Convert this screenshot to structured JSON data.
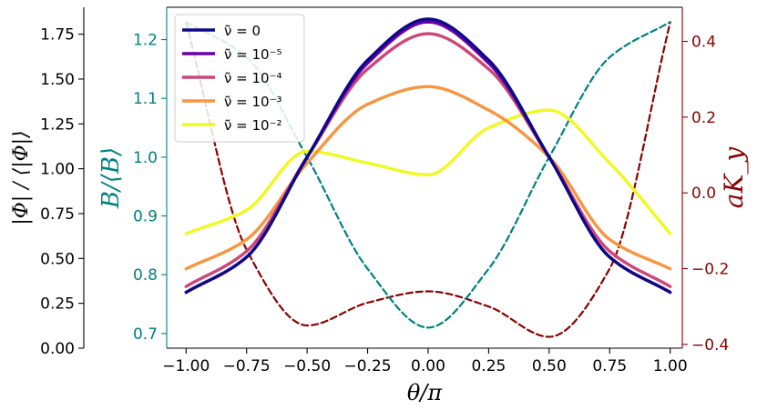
{
  "chart_data": {
    "type": "line",
    "x_domain": [
      -1.0,
      1.0
    ],
    "xlim": [
      -1.08,
      1.05
    ],
    "xlabel": "θ/π",
    "xticks": [
      "−1.00",
      "−0.75",
      "−0.50",
      "−0.25",
      "0.00",
      "0.25",
      "0.50",
      "0.75",
      "1.00"
    ],
    "xtick_values": [
      -1.0,
      -0.75,
      -0.5,
      -0.25,
      0.0,
      0.25,
      0.5,
      0.75,
      1.0
    ],
    "outer_axis": {
      "label": "|Φ| / ⟨|Φ|⟩",
      "ylim": [
        0.0,
        1.9
      ],
      "ticks": [
        "0.00",
        "0.25",
        "0.50",
        "0.75",
        "1.00",
        "1.25",
        "1.50",
        "1.75"
      ],
      "tick_values": [
        0.0,
        0.25,
        0.5,
        0.75,
        1.0,
        1.25,
        1.5,
        1.75
      ]
    },
    "left_axis": {
      "label": "B/⟨B⟩",
      "color": "#008080",
      "ylim": [
        0.675,
        1.255
      ],
      "ticks": [
        "0.7",
        "0.8",
        "0.9",
        "1.0",
        "1.1",
        "1.2"
      ],
      "tick_values": [
        0.7,
        0.8,
        0.9,
        1.0,
        1.1,
        1.2
      ]
    },
    "right_axis": {
      "label": "aK_y",
      "color": "#8b0000",
      "ylim": [
        -0.41,
        0.49
      ],
      "ticks": [
        "−0.4",
        "−0.2",
        "0.0",
        "0.2",
        "0.4"
      ],
      "tick_values": [
        -0.4,
        -0.2,
        0.0,
        0.2,
        0.4
      ]
    },
    "series": [
      {
        "name": "ν̃ =  0",
        "color": "#0d0887",
        "axis": "left",
        "style": "solid",
        "x": [
          -1.0,
          -0.75,
          -0.5,
          -0.25,
          0.0,
          0.25,
          0.5,
          0.75,
          1.0
        ],
        "y": [
          0.77,
          0.83,
          1.0,
          1.165,
          1.235,
          1.165,
          1.0,
          0.83,
          0.77
        ]
      },
      {
        "name": "ν̃ = 10⁻⁵",
        "color": "#6a00a8",
        "axis": "left",
        "style": "solid",
        "x": [
          -1.0,
          -0.75,
          -0.5,
          -0.25,
          0.0,
          0.25,
          0.5,
          0.75,
          1.0
        ],
        "y": [
          0.77,
          0.83,
          1.0,
          1.16,
          1.23,
          1.16,
          1.0,
          0.83,
          0.77
        ]
      },
      {
        "name": "ν̃ = 10⁻⁴",
        "color": "#cc4778",
        "axis": "left",
        "style": "solid",
        "x": [
          -1.0,
          -0.75,
          -0.5,
          -0.25,
          0.0,
          0.25,
          0.5,
          0.75,
          1.0
        ],
        "y": [
          0.78,
          0.84,
          1.0,
          1.15,
          1.21,
          1.15,
          1.0,
          0.84,
          0.78
        ]
      },
      {
        "name": "ν̃ = 10⁻³",
        "color": "#f89540",
        "axis": "left",
        "style": "solid",
        "x": [
          -1.0,
          -0.75,
          -0.5,
          -0.25,
          0.0,
          0.25,
          0.5,
          0.75,
          1.0
        ],
        "y": [
          0.81,
          0.86,
          0.99,
          1.09,
          1.12,
          1.08,
          1.0,
          0.86,
          0.81
        ]
      },
      {
        "name": "ν̃ = 10⁻²",
        "color": "#f0f921",
        "axis": "left",
        "style": "solid",
        "x": [
          -1.0,
          -0.75,
          -0.5,
          -0.25,
          0.0,
          0.25,
          0.5,
          0.75,
          1.0
        ],
        "y": [
          0.87,
          0.91,
          1.01,
          0.99,
          0.97,
          1.05,
          1.08,
          0.99,
          0.87
        ]
      },
      {
        "name": "",
        "color": "#008080",
        "axis": "left",
        "style": "dashed",
        "x": [
          -1.0,
          -0.75,
          -0.5,
          -0.25,
          0.0,
          0.25,
          0.5,
          0.75,
          1.0
        ],
        "y": [
          1.23,
          1.17,
          1.0,
          0.81,
          0.71,
          0.81,
          1.0,
          1.17,
          1.23
        ]
      },
      {
        "name": "",
        "color": "#8b0000",
        "axis": "right",
        "style": "dashed",
        "x": [
          -1.0,
          -0.75,
          -0.5,
          -0.25,
          0.0,
          0.25,
          0.5,
          0.75,
          1.0
        ],
        "y": [
          0.45,
          -0.15,
          -0.35,
          -0.29,
          -0.26,
          -0.3,
          -0.38,
          -0.2,
          0.45
        ]
      }
    ]
  }
}
